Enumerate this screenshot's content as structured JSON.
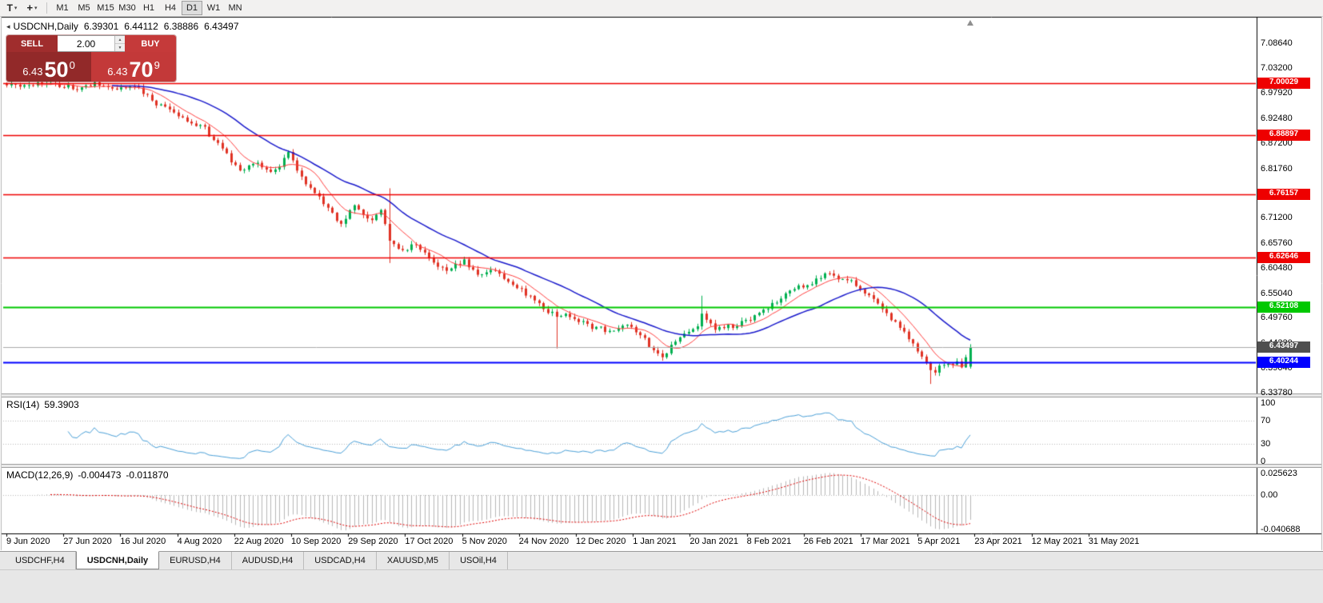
{
  "icons": {
    "dropdown": "▾",
    "crosshair": "+",
    "collapse": "◂",
    "spin_up": "▲",
    "spin_down": "▼"
  },
  "toolbar": {
    "text_tool_label": "T",
    "timeframes": [
      "M1",
      "M5",
      "M15",
      "M30",
      "H1",
      "H4",
      "D1",
      "W1",
      "MN"
    ],
    "active_timeframe": "D1"
  },
  "chart": {
    "title": "USDCNH,Daily",
    "open": "6.39301",
    "high": "6.44112",
    "low": "6.38886",
    "close": "6.43497"
  },
  "trade_panel": {
    "sell_label": "SELL",
    "buy_label": "BUY",
    "volume": "2.00",
    "sell_price": {
      "head": "6.43",
      "big": "50",
      "sup": "0"
    },
    "buy_price": {
      "head": "6.43",
      "big": "70",
      "sup": "9"
    }
  },
  "chart_data": {
    "type": "candlestick",
    "symbol": "USDCNH",
    "period": "Daily",
    "last_bar": {
      "open": 6.39301,
      "high": 6.44112,
      "low": 6.38886,
      "close": 6.43497
    },
    "bars": 220,
    "candle_up_color": "#00b050",
    "candle_down_color": "#e03224",
    "close_path": [
      [
        0.0,
        6.995
      ],
      [
        0.043,
        7.0
      ],
      [
        0.072,
        6.99
      ],
      [
        0.093,
        7.002
      ],
      [
        0.114,
        6.988
      ],
      [
        0.134,
        6.995
      ],
      [
        0.151,
        6.96
      ],
      [
        0.168,
        6.945
      ],
      [
        0.184,
        6.92
      ],
      [
        0.205,
        6.905
      ],
      [
        0.217,
        6.872
      ],
      [
        0.242,
        6.815
      ],
      [
        0.259,
        6.828
      ],
      [
        0.276,
        6.805
      ],
      [
        0.292,
        6.848
      ],
      [
        0.309,
        6.79
      ],
      [
        0.329,
        6.745
      ],
      [
        0.346,
        6.695
      ],
      [
        0.361,
        6.74
      ],
      [
        0.378,
        6.705
      ],
      [
        0.389,
        6.73
      ],
      [
        0.398,
        6.66
      ],
      [
        0.408,
        6.64
      ],
      [
        0.425,
        6.655
      ],
      [
        0.441,
        6.62
      ],
      [
        0.458,
        6.6
      ],
      [
        0.475,
        6.618
      ],
      [
        0.491,
        6.585
      ],
      [
        0.508,
        6.6
      ],
      [
        0.524,
        6.57
      ],
      [
        0.541,
        6.545
      ],
      [
        0.558,
        6.52
      ],
      [
        0.572,
        6.495
      ],
      [
        0.583,
        6.505
      ],
      [
        0.605,
        6.48
      ],
      [
        0.625,
        6.47
      ],
      [
        0.649,
        6.48
      ],
      [
        0.666,
        6.44
      ],
      [
        0.682,
        6.415
      ],
      [
        0.7,
        6.465
      ],
      [
        0.716,
        6.47
      ],
      [
        0.721,
        6.505
      ],
      [
        0.736,
        6.475
      ],
      [
        0.753,
        6.48
      ],
      [
        0.77,
        6.49
      ],
      [
        0.787,
        6.515
      ],
      [
        0.803,
        6.54
      ],
      [
        0.82,
        6.56
      ],
      [
        0.837,
        6.575
      ],
      [
        0.85,
        6.595
      ],
      [
        0.866,
        6.58
      ],
      [
        0.883,
        6.57
      ],
      [
        0.895,
        6.545
      ],
      [
        0.908,
        6.52
      ],
      [
        0.925,
        6.48
      ],
      [
        0.942,
        6.44
      ],
      [
        0.953,
        6.405
      ],
      [
        0.96,
        6.38
      ],
      [
        0.972,
        6.398
      ],
      [
        0.984,
        6.402
      ],
      [
        0.992,
        6.395
      ],
      [
        1.0,
        6.435
      ]
    ],
    "special_bars": [
      {
        "t": 0.398,
        "high": 6.775,
        "low": 6.615
      },
      {
        "t": 0.572,
        "low": 6.432
      },
      {
        "t": 0.721,
        "high": 6.545
      },
      {
        "t": 0.96,
        "low": 6.356
      }
    ],
    "moving_averages": [
      {
        "period": 8,
        "color": "#ff4040",
        "width": 1
      },
      {
        "period": 25,
        "color": "#1a1acc",
        "width": 1.5
      }
    ],
    "horizontal_lines": [
      {
        "price": 7.00029,
        "label": "7.00029",
        "color": "#ee0000",
        "width": 1.5
      },
      {
        "price": 6.88897,
        "label": "6.88897",
        "color": "#ee0000",
        "width": 1.5
      },
      {
        "price": 6.76157,
        "label": "6.76157",
        "color": "#ee0000",
        "width": 1.5
      },
      {
        "price": 6.62646,
        "label": "6.62646",
        "color": "#ee0000",
        "width": 1.5
      },
      {
        "price": 6.52108,
        "label": "6.52108",
        "color": "#00c800",
        "width": 2
      },
      {
        "price": 6.40244,
        "label": "6.40244",
        "color": "#0000ff",
        "width": 2
      }
    ],
    "current_price": {
      "value": 6.43497,
      "label": "6.43497",
      "line_color": "#aaaaaa",
      "tag_color": "#4f4f4f"
    },
    "y_axis_labels": [
      "7.08640",
      "7.03200",
      "6.97920",
      "6.92480",
      "6.87200",
      "6.81760",
      "6.76480",
      "6.71200",
      "6.65760",
      "6.60480",
      "6.55040",
      "6.49760",
      "6.44320",
      "6.39040",
      "6.33780"
    ],
    "x_axis_labels": [
      "9 Jun 2020",
      "27 Jun 2020",
      "16 Jul 2020",
      "4 Aug 2020",
      "22 Aug 2020",
      "10 Sep 2020",
      "29 Sep 2020",
      "17 Oct 2020",
      "5 Nov 2020",
      "24 Nov 2020",
      "12 Dec 2020",
      "1 Jan 2021",
      "20 Jan 2021",
      "8 Feb 2021",
      "26 Feb 2021",
      "17 Mar 2021",
      "5 Apr 2021",
      "23 Apr 2021",
      "12 May 2021",
      "31 May 2021"
    ],
    "rsi": {
      "label": "RSI(14)",
      "value": "59.3903",
      "period": 14,
      "color": "#4aa0d8",
      "axis_labels": [
        "100",
        "70",
        "30",
        "0"
      ],
      "levels": [
        70,
        30
      ]
    },
    "macd": {
      "label": "MACD(12,26,9)",
      "fast": 12,
      "slow": 26,
      "signal": 9,
      "main_value": "-0.004473",
      "signal_value": "-0.011870",
      "axis_labels": [
        "0.025623",
        "0.00",
        "-0.040688"
      ],
      "hist_color": "#b8b8b8",
      "signal_color": "#e00000"
    }
  },
  "tabs": [
    {
      "label": "USDCHF,H4",
      "active": false
    },
    {
      "label": "USDCNH,Daily",
      "active": true
    },
    {
      "label": "EURUSD,H4",
      "active": false
    },
    {
      "label": "AUDUSD,H4",
      "active": false
    },
    {
      "label": "USDCAD,H4",
      "active": false
    },
    {
      "label": "XAUUSD,M5",
      "active": false
    },
    {
      "label": "USOil,H4",
      "active": false
    }
  ]
}
